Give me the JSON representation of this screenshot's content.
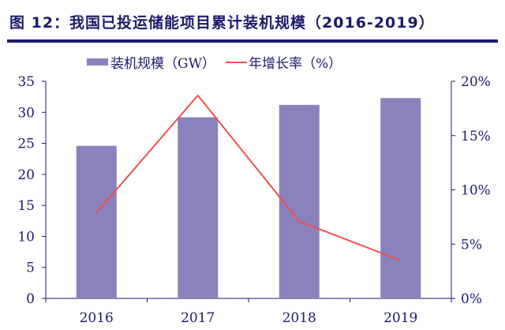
{
  "title": "图 12：我国已投运储能项目累计装机规模（2016-2019）",
  "chart_data": {
    "type": "bar+line",
    "categories": [
      "2016",
      "2017",
      "2018",
      "2019"
    ],
    "series": [
      {
        "name": "装机规模（GW）",
        "type": "bar",
        "axis": "left",
        "values": [
          24.6,
          29.2,
          31.2,
          32.3
        ],
        "color": "#8b81bd"
      },
      {
        "name": "年增长率（%）",
        "type": "line",
        "axis": "right",
        "values": [
          7.9,
          18.7,
          7.1,
          3.5
        ],
        "color": "#f0504f"
      }
    ],
    "ylim_left": [
      0,
      35
    ],
    "yticks_left": [
      "0",
      "5",
      "10",
      "15",
      "20",
      "25",
      "30",
      "35"
    ],
    "ylim_right": [
      0,
      20
    ],
    "yticks_right": [
      "0%",
      "5%",
      "10%",
      "15%",
      "20%"
    ],
    "legend": "top",
    "grid": false
  }
}
